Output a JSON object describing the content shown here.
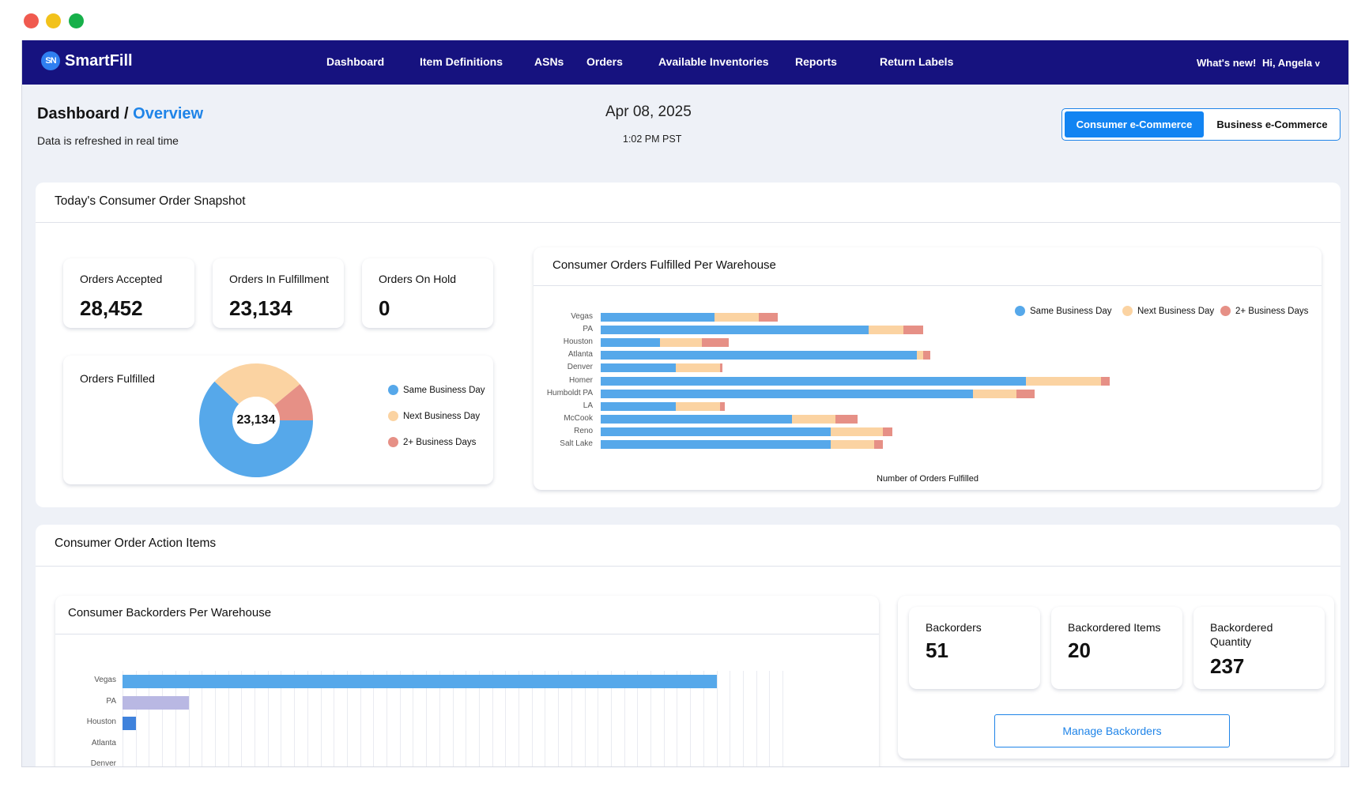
{
  "app": {
    "brand_logo": "SN",
    "brand_name": "SmartFill"
  },
  "nav": {
    "items": [
      {
        "label": "Dashboard"
      },
      {
        "label": "Item Definitions"
      },
      {
        "label": "ASNs"
      },
      {
        "label": "Orders"
      },
      {
        "label": "Available Inventories"
      },
      {
        "label": "Reports"
      },
      {
        "label": "Return Labels"
      }
    ],
    "whats_new": "What's new!",
    "user_greeting": "Hi, Angela",
    "user_caret": "v"
  },
  "header": {
    "crumb_root": "Dashboard",
    "crumb_sep": " / ",
    "crumb_active": "Overview",
    "refresh_note": "Data is refreshed in real time",
    "date": "Apr 08, 2025",
    "time": "1:02 PM PST",
    "toggle": {
      "active": "Consumer e-Commerce",
      "inactive": "Business e-Commerce"
    }
  },
  "snapshot": {
    "title": "Today's Consumer Order Snapshot",
    "cards": [
      {
        "label": "Orders Accepted",
        "value": "28,452"
      },
      {
        "label": "Orders In Fulfillment",
        "value": "23,134"
      },
      {
        "label": "Orders On Hold",
        "value": "0"
      }
    ],
    "fulfilled": {
      "label": "Orders Fulfilled",
      "center_value": "23,134",
      "legend": [
        "Same Business Day",
        "Next Business Day",
        "2+ Business Days"
      ]
    }
  },
  "colors": {
    "same_day": "#56a8ea",
    "next_day": "#fbd3a2",
    "two_plus": "#e69086",
    "nav": "#16127f",
    "accent": "#1284f2",
    "backorder_pa": "#b9b8e3",
    "backorder_houston": "#3f82dc"
  },
  "donut_data": {
    "type": "pie",
    "categories": [
      "Same Business Day",
      "Next Business Day",
      "2+ Business Days"
    ],
    "values": [
      62,
      27,
      11
    ]
  },
  "chart_data": [
    {
      "type": "bar",
      "orientation": "horizontal",
      "stacked": true,
      "title": "Consumer Orders Fulfilled Per Warehouse",
      "xlabel": "Number of Orders Fulfilled",
      "categories": [
        "Vegas",
        "PA",
        "Houston",
        "Atlanta",
        "Denver",
        "Homer",
        "Humboldt PA",
        "LA",
        "McCook",
        "Reno",
        "Salt Lake"
      ],
      "series": [
        {
          "name": "Same Business Day",
          "values": [
            130,
            305,
            68,
            360,
            86,
            485,
            424,
            86,
            218,
            262,
            262
          ]
        },
        {
          "name": "Next Business Day",
          "values": [
            50,
            40,
            47,
            8,
            50,
            85,
            50,
            50,
            50,
            60,
            50
          ]
        },
        {
          "name": "2+ Business Days",
          "values": [
            22,
            23,
            31,
            8,
            3,
            10,
            21,
            5,
            25,
            10,
            10
          ]
        }
      ],
      "legend": "top-right",
      "grid": false
    },
    {
      "type": "bar",
      "orientation": "horizontal",
      "title": "Consumer Backorders Per Warehouse",
      "categories": [
        "Vegas",
        "PA",
        "Houston",
        "Atlanta",
        "Denver"
      ],
      "values": [
        45,
        5,
        1,
        0,
        0
      ],
      "xlim": [
        0,
        50
      ],
      "grid": true
    }
  ],
  "action_items": {
    "title": "Consumer Order Action Items",
    "cards": [
      {
        "label": "Backorders",
        "value": "51"
      },
      {
        "label": "Backordered Items",
        "value": "20"
      },
      {
        "label": "Backordered Quantity",
        "value": "237"
      }
    ],
    "manage_label": "Manage Backorders"
  }
}
